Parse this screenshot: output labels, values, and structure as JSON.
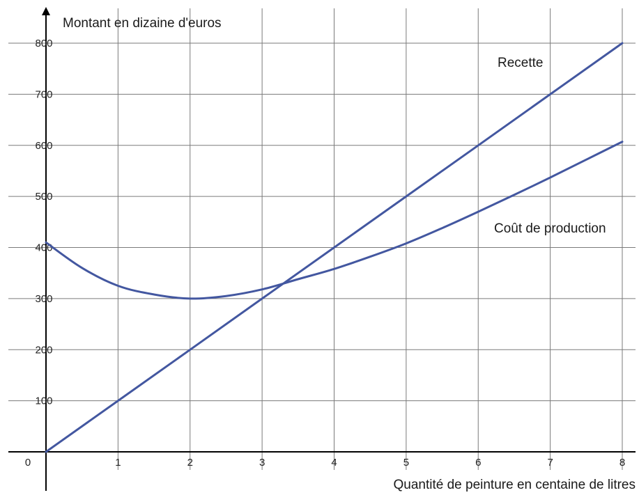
{
  "chart_data": {
    "type": "line",
    "title": "",
    "ylabel": "Montant en dizaine d'euros",
    "xlabel": "Quantité de peinture en centaine de litres",
    "origin_label": "0",
    "xlim": [
      0,
      8
    ],
    "ylim": [
      0,
      800
    ],
    "x_ticks": [
      1,
      2,
      3,
      4,
      5,
      6,
      7,
      8
    ],
    "y_ticks": [
      100,
      200,
      300,
      400,
      500,
      600,
      700,
      800
    ],
    "grid": true,
    "line_color": "#4357a0",
    "series": [
      {
        "name": "Recette",
        "x": [
          0,
          1,
          2,
          3,
          4,
          5,
          6,
          7,
          8
        ],
        "y": [
          0,
          100,
          200,
          300,
          400,
          500,
          600,
          700,
          800
        ]
      },
      {
        "name": "Coût de production",
        "x": [
          0,
          0.5,
          1,
          1.5,
          2,
          2.5,
          3,
          3.5,
          4,
          4.5,
          5,
          5.5,
          6,
          6.5,
          7,
          7.5,
          8
        ],
        "y": [
          410,
          360,
          325,
          308,
          300,
          305,
          318,
          338,
          358,
          382,
          408,
          438,
          470,
          503,
          537,
          572,
          607
        ]
      }
    ]
  }
}
